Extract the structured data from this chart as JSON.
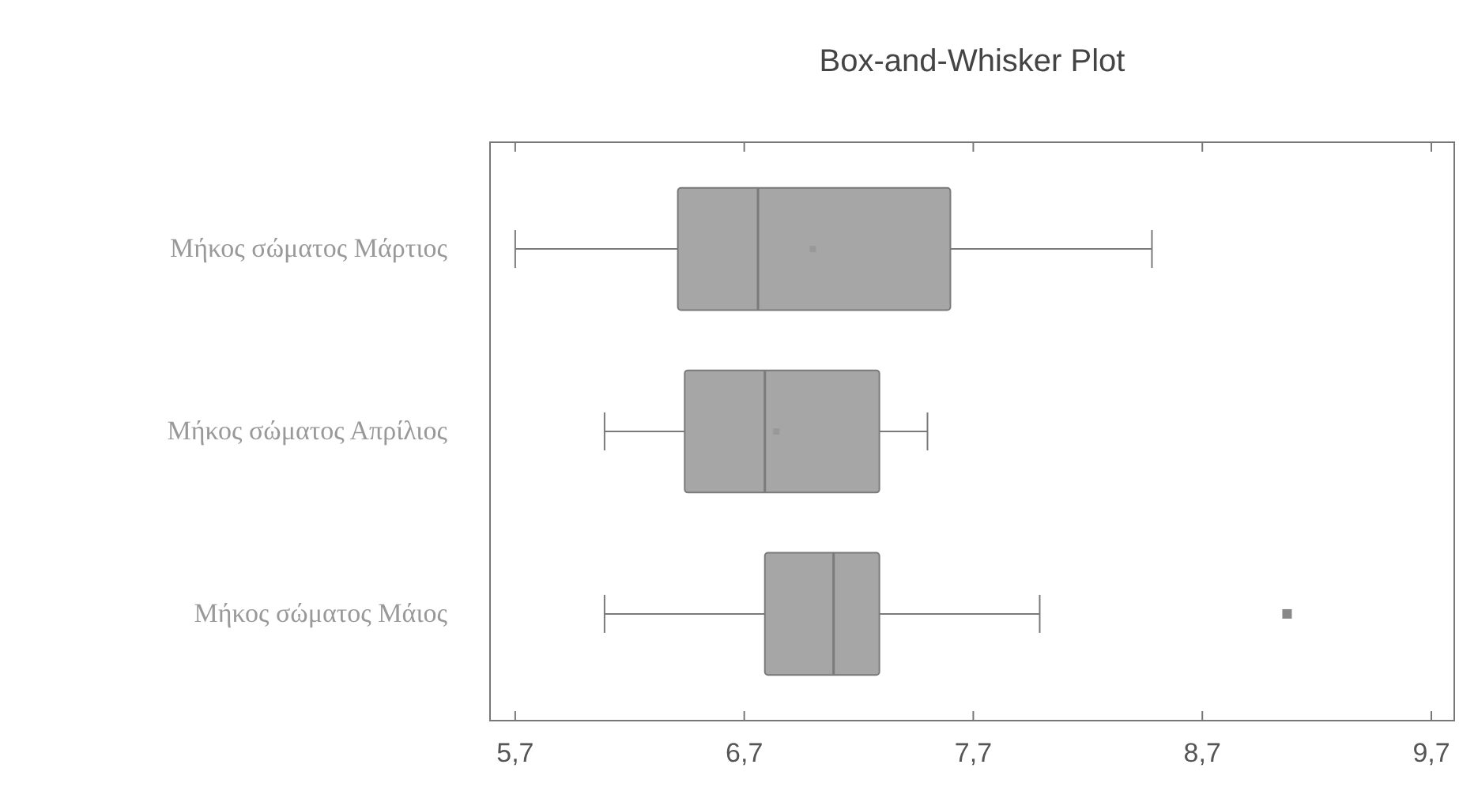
{
  "chart_data": {
    "type": "box",
    "title": "Box-and-Whisker Plot",
    "orientation": "horizontal",
    "categories": [
      "Μήκος σώματος Μάρτιος",
      "Μήκος σώματος Απρίλιος",
      "Μήκος σώματος Μάιος"
    ],
    "boxes": [
      {
        "low": 5.7,
        "q1": 6.41,
        "median": 6.76,
        "q3": 7.6,
        "high": 8.48,
        "mean": 7.0
      },
      {
        "low": 6.09,
        "q1": 6.44,
        "median": 6.79,
        "q3": 7.29,
        "high": 7.5,
        "mean": 6.84
      },
      {
        "low": 6.09,
        "q1": 6.79,
        "median": 7.09,
        "q3": 7.29,
        "high": 7.99,
        "outliers": [
          9.07
        ]
      }
    ],
    "color": "#a6a6a6",
    "xlim": [
      5.59,
      9.8
    ],
    "xticks": [
      {
        "value": 5.7,
        "label": "5,7"
      },
      {
        "value": 6.7,
        "label": "6,7"
      },
      {
        "value": 7.7,
        "label": "7,7"
      },
      {
        "value": 8.7,
        "label": "8,7"
      },
      {
        "value": 9.7,
        "label": "9,7"
      }
    ],
    "grid": false
  }
}
